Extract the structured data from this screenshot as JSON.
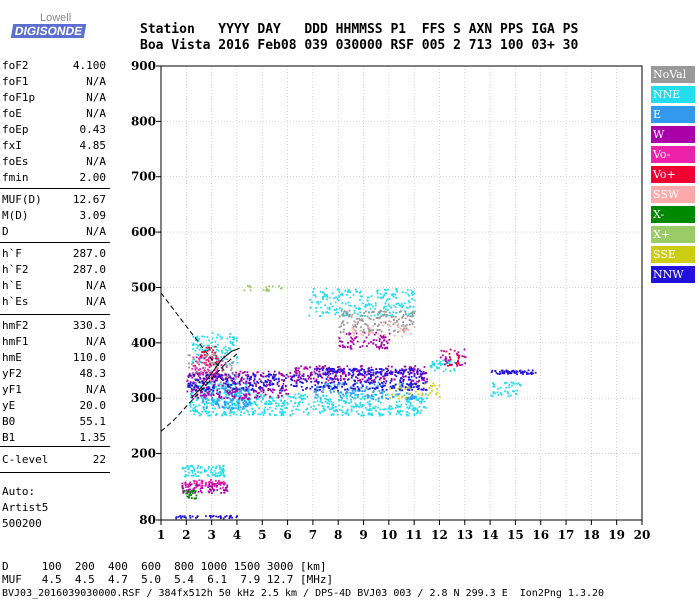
{
  "logo": {
    "top": "Lowell",
    "bottom": "DIGISONDE"
  },
  "header": {
    "row1": "Station   YYYY DAY   DDD HHMMSS P1  FFS S AXN PPS IGA PS",
    "row2": "Boa Vista 2016 Feb08 039 030000 RSF 005 2 713 100 03+ 30"
  },
  "params": [
    {
      "label": "foF2",
      "value": "4.100"
    },
    {
      "label": "foF1",
      "value": "N/A"
    },
    {
      "label": "foF1p",
      "value": "N/A"
    },
    {
      "label": "foE",
      "value": "N/A"
    },
    {
      "label": "foEp",
      "value": "0.43"
    },
    {
      "label": "fxI",
      "value": "4.85"
    },
    {
      "label": "foEs",
      "value": "N/A"
    },
    {
      "label": "fmin",
      "value": "2.00"
    },
    {
      "label": "MUF(D)",
      "value": "12.67"
    },
    {
      "label": "M(D)",
      "value": "3.09"
    },
    {
      "label": "D",
      "value": "N/A"
    },
    {
      "label": "h`F",
      "value": "287.0"
    },
    {
      "label": "h`F2",
      "value": "287.0"
    },
    {
      "label": "h`E",
      "value": "N/A"
    },
    {
      "label": "h`Es",
      "value": "N/A"
    },
    {
      "label": "hmF2",
      "value": "330.3"
    },
    {
      "label": "hmF1",
      "value": "N/A"
    },
    {
      "label": "hmE",
      "value": "110.0"
    },
    {
      "label": "yF2",
      "value": "48.3"
    },
    {
      "label": "yF1",
      "value": "N/A"
    },
    {
      "label": "yE",
      "value": "20.0"
    },
    {
      "label": "B0",
      "value": "55.1"
    },
    {
      "label": "B1",
      "value": "1.35"
    },
    {
      "label": "C-level",
      "value": "22"
    }
  ],
  "autoscaling": {
    "l1": "Auto:",
    "l2": "Artist5",
    "l3": "500200"
  },
  "footer": {
    "d_row": "D     100  200  400  600  800 1000 1500 3000 [km]",
    "muf_row": "MUF   4.5  4.5  4.7  5.0  5.4  6.1  7.9 12.7 [MHz]",
    "file_row": "BVJ03_2016039030000.RSF / 384fx512h 50 kHz 2.5 km / DPS-4D BVJ03 003 / 2.8 N 299.3 E  Ion2Png 1.3.20"
  },
  "legend": [
    {
      "name": "NoVal",
      "color": "#999999"
    },
    {
      "name": "NNE",
      "color": "#22ddee"
    },
    {
      "name": "E",
      "color": "#3399ee"
    },
    {
      "name": "W",
      "color": "#aa00aa"
    },
    {
      "name": "Vo-",
      "color": "#ee22aa"
    },
    {
      "name": "Vo+",
      "color": "#ee0033"
    },
    {
      "name": "SSW",
      "color": "#ffaaaa"
    },
    {
      "name": "X-",
      "color": "#008800"
    },
    {
      "name": "X+",
      "color": "#99cc66"
    },
    {
      "name": "SSE",
      "color": "#cccc11"
    },
    {
      "name": "NNW",
      "color": "#2211dd"
    }
  ],
  "chart_data": {
    "type": "scatter",
    "xlim": [
      1,
      20
    ],
    "ylim": [
      80,
      900
    ],
    "x_ticks": [
      1,
      2,
      3,
      4,
      5,
      6,
      7,
      8,
      9,
      10,
      11,
      12,
      13,
      14,
      15,
      16,
      17,
      18,
      19,
      20
    ],
    "y_ticks": [
      80,
      200,
      300,
      400,
      500,
      600,
      700,
      800,
      900
    ],
    "grid": true,
    "legend_placement": "right",
    "clusters": [
      {
        "direction": "NNE",
        "x": [
          2.1,
          4.5
        ],
        "y": [
          270,
          330
        ],
        "n": 260
      },
      {
        "direction": "NNE",
        "x": [
          4.5,
          11.5
        ],
        "y": [
          270,
          310
        ],
        "n": 420
      },
      {
        "direction": "NNE",
        "x": [
          6.8,
          11.0
        ],
        "y": [
          450,
          500
        ],
        "n": 220
      },
      {
        "direction": "NNE",
        "x": [
          2.2,
          4.0
        ],
        "y": [
          360,
          420
        ],
        "n": 120
      },
      {
        "direction": "NNE",
        "x": [
          11.6,
          12.6
        ],
        "y": [
          350,
          370
        ],
        "n": 40
      },
      {
        "direction": "NNE",
        "x": [
          14.0,
          15.2
        ],
        "y": [
          305,
          330
        ],
        "n": 40
      },
      {
        "direction": "NNE",
        "x": [
          1.8,
          3.5
        ],
        "y": [
          160,
          180
        ],
        "n": 80
      },
      {
        "direction": "E",
        "x": [
          2.5,
          4.5
        ],
        "y": [
          280,
          320
        ],
        "n": 120
      },
      {
        "direction": "E",
        "x": [
          7.0,
          11.0
        ],
        "y": [
          300,
          330
        ],
        "n": 160
      },
      {
        "direction": "W",
        "x": [
          2.0,
          6.0
        ],
        "y": [
          300,
          350
        ],
        "n": 260
      },
      {
        "direction": "W",
        "x": [
          6.0,
          11.5
        ],
        "y": [
          330,
          360
        ],
        "n": 220
      },
      {
        "direction": "W",
        "x": [
          1.8,
          3.6
        ],
        "y": [
          130,
          150
        ],
        "n": 90
      },
      {
        "direction": "W",
        "x": [
          8.0,
          10.0
        ],
        "y": [
          390,
          420
        ],
        "n": 80
      },
      {
        "direction": "W",
        "x": [
          12.0,
          13.0
        ],
        "y": [
          360,
          390
        ],
        "n": 30
      },
      {
        "direction": "Vo-",
        "x": [
          2.2,
          3.6
        ],
        "y": [
          330,
          380
        ],
        "n": 90
      },
      {
        "direction": "Vo-",
        "x": [
          1.9,
          3.5
        ],
        "y": [
          140,
          155
        ],
        "n": 50
      },
      {
        "direction": "Vo+",
        "x": [
          2.5,
          3.2
        ],
        "y": [
          360,
          395
        ],
        "n": 30
      },
      {
        "direction": "Vo+",
        "x": [
          12.2,
          12.8
        ],
        "y": [
          360,
          390
        ],
        "n": 15
      },
      {
        "direction": "NoVal",
        "x": [
          8.0,
          11.0
        ],
        "y": [
          420,
          460
        ],
        "n": 150
      },
      {
        "direction": "NoVal",
        "x": [
          2.0,
          4.0
        ],
        "y": [
          330,
          380
        ],
        "n": 60
      },
      {
        "direction": "SSW",
        "x": [
          8.5,
          11.0
        ],
        "y": [
          410,
          440
        ],
        "n": 40
      },
      {
        "direction": "X-",
        "x": [
          1.9,
          2.4
        ],
        "y": [
          120,
          135
        ],
        "n": 25
      },
      {
        "direction": "X+",
        "x": [
          4.2,
          5.8
        ],
        "y": [
          495,
          505
        ],
        "n": 20
      },
      {
        "direction": "SSE",
        "x": [
          10.0,
          12.0
        ],
        "y": [
          300,
          330
        ],
        "n": 40
      },
      {
        "direction": "NNW",
        "x": [
          2.0,
          11.5
        ],
        "y": [
          315,
          345
        ],
        "n": 360
      },
      {
        "direction": "NNW",
        "x": [
          7.0,
          11.5
        ],
        "y": [
          345,
          355
        ],
        "n": 120
      },
      {
        "direction": "NNW",
        "x": [
          14.0,
          15.8
        ],
        "y": [
          345,
          352
        ],
        "n": 60
      },
      {
        "direction": "NNW",
        "x": [
          1.5,
          4.0
        ],
        "y": [
          84,
          90
        ],
        "n": 40
      }
    ],
    "curves": [
      {
        "style": "dashed",
        "points": [
          [
            1,
            490
          ],
          [
            1.5,
            460
          ],
          [
            2,
            430
          ],
          [
            2.5,
            400
          ],
          [
            3,
            370
          ],
          [
            3.5,
            350
          ]
        ]
      },
      {
        "style": "dashed",
        "points": [
          [
            1,
            240
          ],
          [
            1.5,
            260
          ],
          [
            2,
            285
          ],
          [
            2.5,
            310
          ],
          [
            3,
            335
          ],
          [
            3.5,
            360
          ],
          [
            4,
            380
          ]
        ]
      },
      {
        "style": "solid",
        "points": [
          [
            2.2,
            300
          ],
          [
            2.6,
            320
          ],
          [
            3.0,
            345
          ],
          [
            3.4,
            370
          ],
          [
            3.8,
            385
          ],
          [
            4.1,
            390
          ]
        ]
      }
    ]
  }
}
